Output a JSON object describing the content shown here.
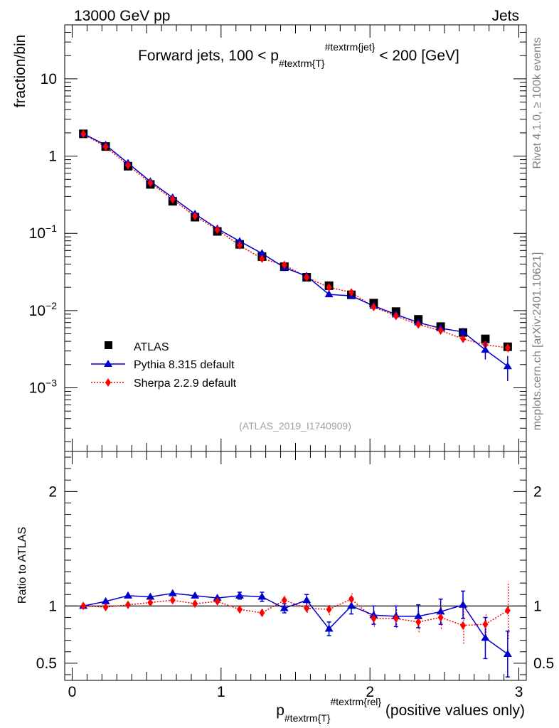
{
  "header": {
    "left": "13000 GeV pp",
    "right": "Jets"
  },
  "side_labels": {
    "rivet": "Rivet 4.1.0, ≥ 100k events",
    "mcplots": "mcplots.cern.ch [arXiv:2401.10621]"
  },
  "chart_data": [
    {
      "type": "line",
      "title_parts": {
        "a": "Forward jets, 100 < p",
        "sub": "#textrm{T}",
        "sup": "#textrm{jet}",
        "b": " < 200 [GeV]"
      },
      "ylabel": "fraction/bin",
      "yscale": "log",
      "ylim": [
        0.00015,
        50
      ],
      "xlim": [
        -0.05,
        3.05
      ],
      "yticks": [
        {
          "v": 10,
          "base": "10",
          "exp": ""
        },
        {
          "v": 1,
          "base": "1",
          "exp": ""
        },
        {
          "v": 0.1,
          "base": "10",
          "exp": "−1"
        },
        {
          "v": 0.01,
          "base": "10",
          "exp": "−2"
        },
        {
          "v": 0.001,
          "base": "10",
          "exp": "−3"
        }
      ],
      "x": [
        0.075,
        0.225,
        0.375,
        0.525,
        0.675,
        0.825,
        0.975,
        1.125,
        1.275,
        1.425,
        1.575,
        1.725,
        1.875,
        2.025,
        2.175,
        2.325,
        2.475,
        2.625,
        2.775,
        2.925
      ],
      "series": [
        {
          "name": "ATLAS",
          "color": "#000000",
          "marker": "square",
          "values": [
            1.94,
            1.33,
            0.74,
            0.43,
            0.26,
            0.162,
            0.106,
            0.072,
            0.05,
            0.037,
            0.027,
            0.021,
            0.016,
            0.0125,
            0.0097,
            0.0077,
            0.0062,
            0.0052,
            0.0043,
            0.0034
          ]
        },
        {
          "name": "Pythia 8.315 default",
          "color": "#0000cc",
          "marker": "triangle",
          "values": [
            1.95,
            1.39,
            0.81,
            0.47,
            0.29,
            0.178,
            0.115,
            0.079,
            0.055,
            0.036,
            0.028,
            0.0162,
            0.0155,
            0.0115,
            0.0089,
            0.007,
            0.0059,
            0.0053,
            0.0031,
            0.0019
          ]
        },
        {
          "name": "Sherpa 2.2.9 default",
          "color": "#ff0000",
          "marker": "diamond",
          "values": [
            1.94,
            1.32,
            0.76,
            0.45,
            0.275,
            0.167,
            0.111,
            0.07,
            0.047,
            0.039,
            0.027,
            0.02,
            0.0172,
            0.0111,
            0.0085,
            0.0066,
            0.0055,
            0.0043,
            0.0036,
            0.0033
          ]
        }
      ],
      "legend": {
        "position": "lower-left"
      },
      "watermark": "(ATLAS_2019_I1740909)"
    },
    {
      "type": "line",
      "title": "",
      "ylabel": "Ratio to ATLAS",
      "xlabel_parts": {
        "a": "p",
        "sub": "#textrm{T}",
        "sup": "#textrm{rel}",
        "b": " (positive values only)"
      },
      "ylim": [
        0.35,
        2.35
      ],
      "xlim": [
        -0.05,
        3.05
      ],
      "yticks": [
        0.5,
        1,
        2
      ],
      "xticks": [
        0,
        1,
        2,
        3
      ],
      "x": [
        0.075,
        0.225,
        0.375,
        0.525,
        0.675,
        0.825,
        0.975,
        1.125,
        1.275,
        1.425,
        1.575,
        1.725,
        1.875,
        2.025,
        2.175,
        2.325,
        2.475,
        2.625,
        2.775,
        2.925
      ],
      "series": [
        {
          "name": "Pythia 8.315 default",
          "color": "#0000cc",
          "values": [
            1.0,
            1.04,
            1.09,
            1.08,
            1.11,
            1.09,
            1.07,
            1.09,
            1.08,
            0.98,
            1.05,
            0.8,
            1.0,
            0.92,
            0.91,
            0.91,
            0.95,
            1.01,
            0.72,
            0.58
          ],
          "errors": [
            0.01,
            0.01,
            0.01,
            0.01,
            0.01,
            0.02,
            0.02,
            0.03,
            0.04,
            0.04,
            0.05,
            0.06,
            0.07,
            0.08,
            0.09,
            0.1,
            0.11,
            0.12,
            0.18,
            0.2
          ]
        },
        {
          "name": "Sherpa 2.2.9 default",
          "color": "#ff0000",
          "values": [
            1.0,
            0.99,
            1.01,
            1.03,
            1.05,
            1.02,
            1.04,
            0.97,
            0.94,
            1.05,
            0.98,
            0.97,
            1.06,
            0.89,
            0.89,
            0.86,
            0.9,
            0.83,
            0.84,
            0.96
          ],
          "errors": [
            0.01,
            0.01,
            0.01,
            0.01,
            0.01,
            0.02,
            0.02,
            0.03,
            0.03,
            0.04,
            0.04,
            0.05,
            0.06,
            0.07,
            0.08,
            0.09,
            0.1,
            0.16,
            0.1,
            0.25
          ]
        }
      ]
    }
  ]
}
